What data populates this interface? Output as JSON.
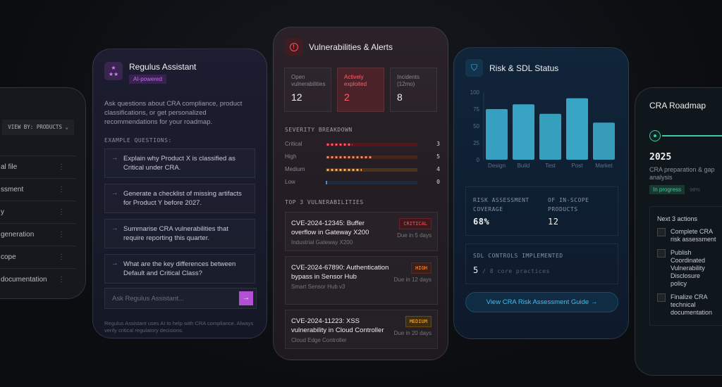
{
  "products_card": {
    "view_by_label": "VIEW BY: PRODUCTS",
    "rows": [
      "Technical file",
      "Risk assessment",
      "SBOM policy",
      "SBOM generation",
      "Product scope",
      "Product documentation"
    ],
    "row_labels_visible": [
      "al file",
      "ssment",
      "y",
      "generation",
      "cope",
      "documentation"
    ]
  },
  "assistant": {
    "title": "Regulus Assistant",
    "badge": "AI-powered",
    "description": "Ask questions about CRA compliance, product classifications, or get personalized recommendations for your roadmap.",
    "examples_heading": "EXAMPLE QUESTIONS:",
    "questions": [
      "Explain why Product X is classified as Critical under CRA.",
      "Generate a checklist of missing artifacts for Product Y before 2027.",
      "Summarise CRA vulnerabilities that require reporting this quarter.",
      "What are the key differences between Default and Critical Class?"
    ],
    "input_placeholder": "Ask Regulus Assistant...",
    "disclaimer": "Regulus Assistant uses AI to help with CRA compliance. Always verify critical regulatory decisions.",
    "accent": "#b44fd6"
  },
  "vulnerabilities": {
    "title": "Vulnerabilities & Alerts",
    "stats": [
      {
        "label": "Open vulnerabilities",
        "value": "12"
      },
      {
        "label": "Actively exploited",
        "value": "2"
      },
      {
        "label": "Incidents (12mo)",
        "value": "8"
      }
    ],
    "severity_heading": "SEVERITY BREAKDOWN",
    "severity": [
      {
        "label": "Critical",
        "count": "3",
        "fill": 0.29,
        "color": "#ff5a6a",
        "track": "#5a1418"
      },
      {
        "label": "High",
        "count": "5",
        "fill": 0.5,
        "color": "#ff8a60",
        "track": "#4a2216"
      },
      {
        "label": "Medium",
        "count": "4",
        "fill": 0.39,
        "color": "#ffb060",
        "track": "#4a3414"
      },
      {
        "label": "Low",
        "count": "0",
        "fill": 0,
        "color": "#3a8ee0",
        "track": "#1c2c40"
      }
    ],
    "top_heading": "TOP 3 VULNERABILITIES",
    "items": [
      {
        "title": "CVE-2024-12345: Buffer overflow in Gateway X200",
        "product": "Industrial Gateway X200",
        "badge": "CRITICAL",
        "due": "Due in 5 days"
      },
      {
        "title": "CVE-2024-67890: Authentication bypass in Sensor Hub",
        "product": "Smart Sensor Hub v3",
        "badge": "HIGH",
        "due": "Due in 12 days"
      },
      {
        "title": "CVE-2024-11223: XSS vulnerability in Cloud Controller",
        "product": "Cloud Edge Controller",
        "badge": "MEDIUM",
        "due": "Due in 20 days"
      }
    ]
  },
  "risk": {
    "title": "Risk & SDL Status",
    "chart_data": {
      "type": "bar",
      "categories": [
        "Design",
        "Build",
        "Test",
        "Post",
        "Market"
      ],
      "values": [
        75,
        82,
        68,
        91,
        55
      ],
      "ylim": [
        0,
        100
      ],
      "yticks": [
        "0",
        "25",
        "50",
        "75",
        "100"
      ],
      "color": "#3aa8c8"
    },
    "coverage_label": "RISK ASSESSMENT COVERAGE",
    "coverage_value": "68%",
    "inscope_label": "OF IN-SCOPE PRODUCTS",
    "inscope_value": "12",
    "sdl_label": "SDL CONTROLS IMPLEMENTED",
    "sdl_value": "5",
    "sdl_total": "/ 8 core practices",
    "guide_button": "View CRA Risk Assessment Guide →"
  },
  "roadmap": {
    "title": "CRA Roadmap",
    "year": "2025",
    "phase": "CRA preparation & gap analysis",
    "status": "In progress",
    "progress": "98%",
    "actions_heading": "Next 3 actions",
    "actions": [
      "Complete CRA risk assessment",
      "Publish Coordinated Vulnerability Disclosure policy",
      "Finalize CRA technical documentation"
    ]
  }
}
